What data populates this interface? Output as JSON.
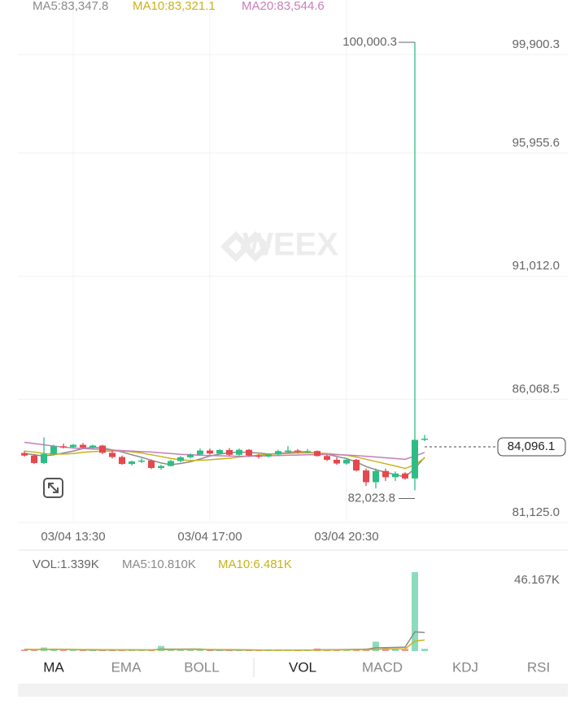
{
  "chart_data": [
    {
      "type": "candlestick",
      "categories": [
        null,
        null,
        null,
        null,
        null,
        "03/04 13:30",
        null,
        null,
        null,
        null,
        null,
        null,
        null,
        null,
        null,
        null,
        null,
        null,
        null,
        "03/04 17:00",
        null,
        null,
        null,
        null,
        null,
        null,
        null,
        null,
        null,
        null,
        null,
        null,
        null,
        "03/04 20:30",
        null,
        null,
        null,
        null,
        null,
        null,
        null,
        null
      ],
      "open": [
        83520,
        83420,
        83120,
        83480,
        83790,
        83760,
        83850,
        83740,
        83820,
        83530,
        83360,
        83080,
        83180,
        83220,
        82920,
        83000,
        83200,
        83350,
        83460,
        83620,
        83500,
        83640,
        83450,
        83650,
        83420,
        83380,
        83460,
        83600,
        83620,
        83560,
        83600,
        83400,
        83250,
        83100,
        83250,
        82820,
        82350,
        82800,
        82550,
        82700,
        82500,
        84050
      ],
      "high": [
        83600,
        83480,
        84150,
        83850,
        83900,
        83880,
        83920,
        83860,
        83850,
        83620,
        83420,
        83220,
        83300,
        83260,
        83050,
        83250,
        83400,
        83500,
        83700,
        83700,
        83680,
        83720,
        83700,
        83680,
        83480,
        83500,
        83650,
        83800,
        83680,
        83680,
        83620,
        83450,
        83350,
        83300,
        83280,
        82900,
        82900,
        82900,
        82780,
        82750,
        100000.3,
        84250
      ],
      "low": [
        83380,
        83080,
        83080,
        83420,
        83700,
        83720,
        83700,
        83680,
        83480,
        83300,
        83050,
        83020,
        83120,
        82880,
        82850,
        82980,
        83150,
        83300,
        83420,
        83450,
        83460,
        83400,
        83420,
        83380,
        83300,
        83350,
        83420,
        83550,
        83500,
        83520,
        83380,
        83200,
        83050,
        83050,
        82780,
        82200,
        82100,
        82400,
        82400,
        82450,
        82023.8,
        84000
      ],
      "close": [
        83420,
        83120,
        83480,
        83790,
        83760,
        83850,
        83740,
        83820,
        83530,
        83360,
        83080,
        83180,
        83220,
        82920,
        83000,
        83200,
        83350,
        83460,
        83620,
        83500,
        83640,
        83450,
        83650,
        83420,
        83380,
        83460,
        83600,
        83620,
        83560,
        83600,
        83400,
        83250,
        83100,
        83250,
        82820,
        82350,
        82800,
        82550,
        82700,
        82500,
        84050,
        84096.1
      ],
      "up_color": "#2ebd85",
      "down_color": "#e5484d",
      "ma": [
        {
          "label": "MA5:83,347.8",
          "color": "#8a8a8a",
          "values": [
            83500,
            83450,
            83400,
            83450,
            83520,
            83600,
            83700,
            83750,
            83720,
            83650,
            83560,
            83450,
            83350,
            83230,
            83120,
            83050,
            83100,
            83170,
            83280,
            83400,
            83480,
            83530,
            83560,
            83540,
            83520,
            83480,
            83500,
            83540,
            83580,
            83560,
            83520,
            83470,
            83380,
            83300,
            83160,
            82980,
            82850,
            82750,
            82650,
            82560,
            82900,
            83347.8
          ]
        },
        {
          "label": "MA10:83,321.1",
          "color": "#c9b21a",
          "values": [
            83600,
            83560,
            83500,
            83480,
            83480,
            83500,
            83550,
            83580,
            83590,
            83600,
            83600,
            83570,
            83520,
            83450,
            83380,
            83300,
            83250,
            83220,
            83230,
            83250,
            83280,
            83310,
            83360,
            83400,
            83440,
            83470,
            83490,
            83500,
            83520,
            83530,
            83520,
            83500,
            83470,
            83430,
            83360,
            83270,
            83180,
            83090,
            83000,
            82900,
            83050,
            83321.1
          ]
        },
        {
          "label": "MA20:83,544.6",
          "color": "#c77dbb",
          "values": [
            83950,
            83900,
            83850,
            83800,
            83760,
            83720,
            83700,
            83680,
            83660,
            83640,
            83620,
            83600,
            83580,
            83560,
            83530,
            83500,
            83470,
            83450,
            83430,
            83420,
            83410,
            83400,
            83390,
            83390,
            83400,
            83410,
            83420,
            83430,
            83440,
            83450,
            83460,
            83460,
            83450,
            83440,
            83420,
            83390,
            83360,
            83330,
            83300,
            83270,
            83400,
            83544.6
          ]
        }
      ],
      "ylim": [
        81125.0,
        100000.3
      ],
      "yticks": [
        {
          "value": 99900.3,
          "label": "99,900.3"
        },
        {
          "value": 95955.6,
          "label": "95,955.6"
        },
        {
          "value": 91012.0,
          "label": "91,012.0"
        },
        {
          "value": 86068.5,
          "label": "86,068.5"
        },
        {
          "value": 81125.0,
          "label": "81,125.0"
        }
      ],
      "high_label": {
        "value": 100000.3,
        "label": "100,000.3"
      },
      "low_label": {
        "value": 82023.8,
        "label": "82,023.8"
      },
      "last_price": {
        "value": 84096.1,
        "label": "84,096.1"
      },
      "grid": true
    },
    {
      "type": "bar",
      "title": "VOL:1.339K",
      "values": [
        900,
        700,
        2100,
        800,
        600,
        500,
        700,
        600,
        800,
        700,
        900,
        600,
        500,
        700,
        3000,
        900,
        700,
        600,
        800,
        700,
        600,
        500,
        600,
        700,
        500,
        400,
        600,
        700,
        500,
        600,
        1500,
        700,
        800,
        900,
        1200,
        1500,
        5500,
        1800,
        1300,
        1400,
        46167,
        1339
      ],
      "ma": [
        {
          "label": "MA5:10.810K",
          "color": "#8a8a8a",
          "values": [
            1000,
            900,
            1000,
            1050,
            1040,
            900,
            740,
            640,
            640,
            660,
            740,
            700,
            700,
            680,
            1140,
            1160,
            1160,
            1180,
            1200,
            740,
            680,
            640,
            640,
            620,
            580,
            540,
            560,
            580,
            540,
            560,
            780,
            800,
            860,
            900,
            1040,
            1020,
            1940,
            2040,
            2140,
            2300,
            11230,
            10810
          ]
        },
        {
          "label": "MA10:6.481K",
          "color": "#c9b21a",
          "values": [
            950,
            920,
            940,
            960,
            980,
            950,
            900,
            880,
            860,
            820,
            800,
            760,
            720,
            700,
            840,
            860,
            900,
            920,
            960,
            940,
            920,
            880,
            840,
            800,
            660,
            610,
            600,
            610,
            590,
            580,
            640,
            660,
            700,
            720,
            790,
            860,
            1040,
            1160,
            1240,
            1330,
            5800,
            6481
          ]
        }
      ],
      "ylim": [
        0,
        46167
      ],
      "yticks": [
        {
          "value": 46167,
          "label": "46.167K"
        }
      ]
    }
  ],
  "watermark": "WEEX",
  "tabs": [
    "MA",
    "EMA",
    "BOLL",
    "VOL",
    "MACD",
    "KDJ",
    "RSI"
  ]
}
